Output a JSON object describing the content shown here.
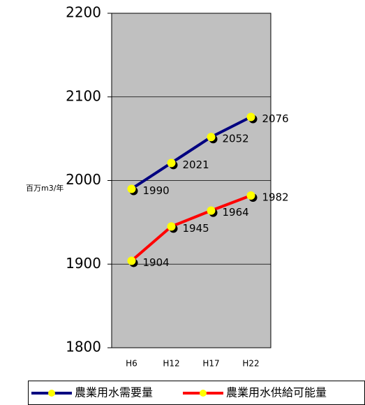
{
  "chart_data": {
    "type": "line",
    "y_label": "百万m3/年",
    "categories": [
      "H6",
      "H12",
      "H17",
      "H22"
    ],
    "series": [
      {
        "name": "農業用水需要量",
        "color": "#000080",
        "values": [
          1990,
          2021,
          2052,
          2076
        ]
      },
      {
        "name": "農業用水供給可能量",
        "color": "#ff0000",
        "values": [
          1904,
          1945,
          1964,
          1982
        ]
      }
    ],
    "marker_color": "#ffff00",
    "ylim": [
      1800,
      2200
    ],
    "yticks": [
      1800,
      1900,
      2000,
      2100,
      2200
    ],
    "grid": true
  }
}
